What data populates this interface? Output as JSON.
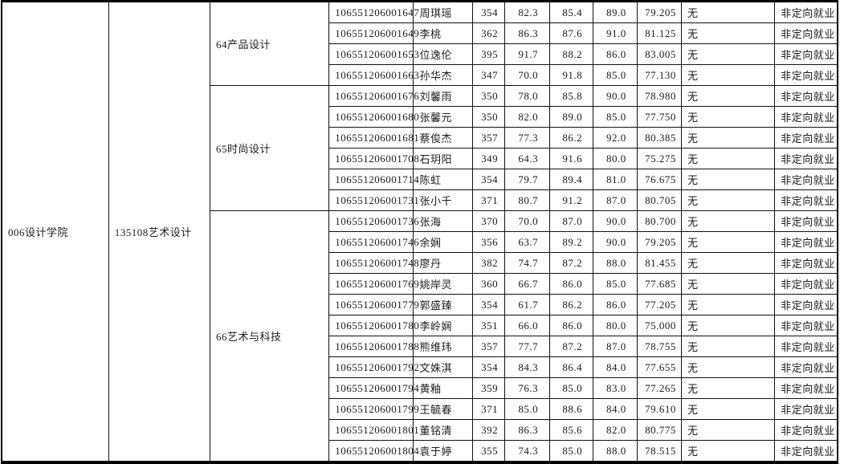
{
  "page": {
    "background": "#ffffff",
    "text_color": "#1c1c1c",
    "border_color": "#000000"
  },
  "table": {
    "college": "006设计学院",
    "major": "135108艺术设计",
    "groups": [
      {
        "direction": "64产品设计",
        "rows": [
          {
            "id": "106551206001647",
            "name": "周琪瑶",
            "s1": "354",
            "s2": "82.3",
            "s3": "85.4",
            "s4": "89.0",
            "total": "79.205",
            "note": "无",
            "type": "非定向就业"
          },
          {
            "id": "106551206001649",
            "name": "李桃",
            "s1": "362",
            "s2": "86.3",
            "s3": "87.6",
            "s4": "91.0",
            "total": "81.125",
            "note": "无",
            "type": "非定向就业"
          },
          {
            "id": "106551206001653",
            "name": "位逸伦",
            "s1": "395",
            "s2": "91.7",
            "s3": "88.2",
            "s4": "86.0",
            "total": "83.005",
            "note": "无",
            "type": "非定向就业"
          },
          {
            "id": "106551206001663",
            "name": "孙华杰",
            "s1": "347",
            "s2": "70.0",
            "s3": "91.8",
            "s4": "85.0",
            "total": "77.130",
            "note": "无",
            "type": "非定向就业"
          }
        ]
      },
      {
        "direction": "65时尚设计",
        "rows": [
          {
            "id": "106551206001676",
            "name": "刘馨雨",
            "s1": "350",
            "s2": "78.0",
            "s3": "85.8",
            "s4": "90.0",
            "total": "78.980",
            "note": "无",
            "type": "非定向就业"
          },
          {
            "id": "106551206001680",
            "name": "张馨元",
            "s1": "350",
            "s2": "82.0",
            "s3": "89.0",
            "s4": "85.0",
            "total": "77.750",
            "note": "无",
            "type": "非定向就业"
          },
          {
            "id": "106551206001681",
            "name": "蔡俊杰",
            "s1": "357",
            "s2": "77.3",
            "s3": "86.2",
            "s4": "92.0",
            "total": "80.385",
            "note": "无",
            "type": "非定向就业"
          },
          {
            "id": "106551206001708",
            "name": "石玥阳",
            "s1": "349",
            "s2": "64.3",
            "s3": "91.6",
            "s4": "80.0",
            "total": "75.275",
            "note": "无",
            "type": "非定向就业"
          },
          {
            "id": "106551206001714",
            "name": "陈虹",
            "s1": "354",
            "s2": "79.7",
            "s3": "89.4",
            "s4": "81.0",
            "total": "76.675",
            "note": "无",
            "type": "非定向就业"
          },
          {
            "id": "106551206001731",
            "name": "张小千",
            "s1": "371",
            "s2": "80.7",
            "s3": "91.2",
            "s4": "87.0",
            "total": "80.705",
            "note": "无",
            "type": "非定向就业"
          }
        ]
      },
      {
        "direction": "66艺术与科技",
        "rows": [
          {
            "id": "106551206001736",
            "name": "张海",
            "s1": "370",
            "s2": "70.0",
            "s3": "87.0",
            "s4": "90.0",
            "total": "80.700",
            "note": "无",
            "type": "非定向就业"
          },
          {
            "id": "106551206001746",
            "name": "余娴",
            "s1": "356",
            "s2": "63.7",
            "s3": "89.2",
            "s4": "90.0",
            "total": "79.205",
            "note": "无",
            "type": "非定向就业"
          },
          {
            "id": "106551206001748",
            "name": "廖丹",
            "s1": "382",
            "s2": "74.7",
            "s3": "87.2",
            "s4": "88.0",
            "total": "81.455",
            "note": "无",
            "type": "非定向就业"
          },
          {
            "id": "106551206001769",
            "name": "姚岸灵",
            "s1": "360",
            "s2": "66.7",
            "s3": "86.0",
            "s4": "85.0",
            "total": "77.685",
            "note": "无",
            "type": "非定向就业"
          },
          {
            "id": "106551206001779",
            "name": "郭盛臻",
            "s1": "354",
            "s2": "61.7",
            "s3": "86.2",
            "s4": "86.0",
            "total": "77.205",
            "note": "无",
            "type": "非定向就业"
          },
          {
            "id": "106551206001780",
            "name": "李岭娴",
            "s1": "351",
            "s2": "66.0",
            "s3": "86.0",
            "s4": "80.0",
            "total": "75.000",
            "note": "无",
            "type": "非定向就业"
          },
          {
            "id": "106551206001788",
            "name": "熊维玮",
            "s1": "357",
            "s2": "77.7",
            "s3": "87.2",
            "s4": "87.0",
            "total": "78.755",
            "note": "无",
            "type": "非定向就业"
          },
          {
            "id": "106551206001792",
            "name": "文姝淇",
            "s1": "354",
            "s2": "84.3",
            "s3": "86.4",
            "s4": "84.0",
            "total": "77.655",
            "note": "无",
            "type": "非定向就业"
          },
          {
            "id": "106551206001794",
            "name": "黄釉",
            "s1": "359",
            "s2": "76.3",
            "s3": "85.0",
            "s4": "83.0",
            "total": "77.265",
            "note": "无",
            "type": "非定向就业"
          },
          {
            "id": "106551206001799",
            "name": "王毓春",
            "s1": "371",
            "s2": "85.0",
            "s3": "88.6",
            "s4": "84.0",
            "total": "79.610",
            "note": "无",
            "type": "非定向就业"
          },
          {
            "id": "106551206001801",
            "name": "董铭清",
            "s1": "392",
            "s2": "86.3",
            "s3": "85.6",
            "s4": "82.0",
            "total": "80.775",
            "note": "无",
            "type": "非定向就业"
          },
          {
            "id": "106551206001804",
            "name": "袁于婷",
            "s1": "355",
            "s2": "74.3",
            "s3": "85.0",
            "s4": "88.0",
            "total": "78.515",
            "note": "无",
            "type": "非定向就业"
          }
        ]
      }
    ]
  }
}
